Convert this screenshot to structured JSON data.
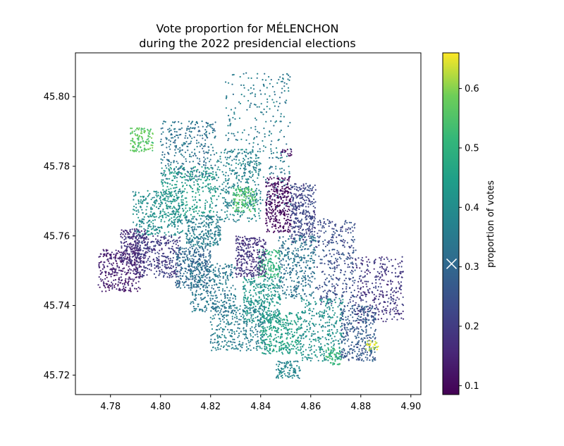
{
  "chart_data": {
    "type": "scatter",
    "title_line1": "Vote proportion for MÉLENCHON",
    "title_line2": "during the 2022 presidencial elections",
    "xlabel": "",
    "ylabel": "",
    "xlim": [
      4.766,
      4.904
    ],
    "ylim": [
      45.7144,
      45.8126
    ],
    "x_ticks": [
      4.78,
      4.8,
      4.82,
      4.84,
      4.86,
      4.88,
      4.9
    ],
    "x_tick_labels": [
      "4.78",
      "4.80",
      "4.82",
      "4.84",
      "4.86",
      "4.88",
      "4.90"
    ],
    "y_ticks": [
      45.72,
      45.74,
      45.76,
      45.78,
      45.8
    ],
    "y_tick_labels": [
      "45.72",
      "45.74",
      "45.76",
      "45.78",
      "45.80"
    ],
    "grid": false,
    "colormap": "viridis",
    "colorbar": {
      "label": "proportion of votes",
      "vmin": 0.085,
      "vmax": 0.66,
      "ticks": [
        0.1,
        0.2,
        0.3,
        0.4,
        0.5,
        0.6
      ],
      "tick_labels": [
        "0.1",
        "0.2",
        "0.3",
        "0.4",
        "0.5",
        "0.6"
      ],
      "marker_value": 0.305
    },
    "regions": [
      {
        "x": [
          4.826,
          4.852
        ],
        "y": [
          45.768,
          45.807
        ],
        "value": 0.35
      },
      {
        "x": [
          4.8,
          4.822
        ],
        "y": [
          45.776,
          45.793
        ],
        "value": 0.33
      },
      {
        "x": [
          4.788,
          4.797
        ],
        "y": [
          45.784,
          45.791
        ],
        "value": 0.56
      },
      {
        "x": [
          4.822,
          4.84
        ],
        "y": [
          45.764,
          45.785
        ],
        "value": 0.38
      },
      {
        "x": [
          4.829,
          4.838
        ],
        "y": [
          45.767,
          45.774
        ],
        "value": 0.55
      },
      {
        "x": [
          4.8,
          4.822
        ],
        "y": [
          45.765,
          45.78
        ],
        "value": 0.44
      },
      {
        "x": [
          4.789,
          4.809
        ],
        "y": [
          45.76,
          45.773
        ],
        "value": 0.4
      },
      {
        "x": [
          4.81,
          4.824
        ],
        "y": [
          45.757,
          45.766
        ],
        "value": 0.36
      },
      {
        "x": [
          4.842,
          4.852
        ],
        "y": [
          45.761,
          45.777
        ],
        "value": 0.1
      },
      {
        "x": [
          4.852,
          4.862
        ],
        "y": [
          45.758,
          45.775
        ],
        "value": 0.22
      },
      {
        "x": [
          4.862,
          4.878
        ],
        "y": [
          45.74,
          45.765
        ],
        "value": 0.24
      },
      {
        "x": [
          4.878,
          4.897
        ],
        "y": [
          45.735,
          45.754
        ],
        "value": 0.19
      },
      {
        "x": [
          4.847,
          4.862
        ],
        "y": [
          45.742,
          45.76
        ],
        "value": 0.33
      },
      {
        "x": [
          4.839,
          4.848
        ],
        "y": [
          45.748,
          45.756
        ],
        "value": 0.5
      },
      {
        "x": [
          4.83,
          4.842
        ],
        "y": [
          45.748,
          45.76
        ],
        "value": 0.18
      },
      {
        "x": [
          4.833,
          4.848
        ],
        "y": [
          45.735,
          45.748
        ],
        "value": 0.42
      },
      {
        "x": [
          4.82,
          4.842
        ],
        "y": [
          45.727,
          45.74
        ],
        "value": 0.36
      },
      {
        "x": [
          4.84,
          4.856
        ],
        "y": [
          45.726,
          45.738
        ],
        "value": 0.45
      },
      {
        "x": [
          4.856,
          4.873
        ],
        "y": [
          45.724,
          45.742
        ],
        "value": 0.41
      },
      {
        "x": [
          4.872,
          4.886
        ],
        "y": [
          45.724,
          45.74
        ],
        "value": 0.27
      },
      {
        "x": [
          4.866,
          4.872
        ],
        "y": [
          45.723,
          45.728
        ],
        "value": 0.52
      },
      {
        "x": [
          4.882,
          4.887
        ],
        "y": [
          45.727,
          45.73
        ],
        "value": 0.64
      },
      {
        "x": [
          4.775,
          4.792
        ],
        "y": [
          45.744,
          45.756
        ],
        "value": 0.14
      },
      {
        "x": [
          4.79,
          4.808
        ],
        "y": [
          45.748,
          45.76
        ],
        "value": 0.2
      },
      {
        "x": [
          4.806,
          4.82
        ],
        "y": [
          45.745,
          45.757
        ],
        "value": 0.3
      },
      {
        "x": [
          4.812,
          4.83
        ],
        "y": [
          45.738,
          45.752
        ],
        "value": 0.34
      },
      {
        "x": [
          4.784,
          4.794
        ],
        "y": [
          45.752,
          45.762
        ],
        "value": 0.17
      },
      {
        "x": [
          4.848,
          4.853
        ],
        "y": [
          45.783,
          45.785
        ],
        "value": 0.12
      },
      {
        "x": [
          4.846,
          4.856
        ],
        "y": [
          45.719,
          45.724
        ],
        "value": 0.38
      }
    ]
  }
}
